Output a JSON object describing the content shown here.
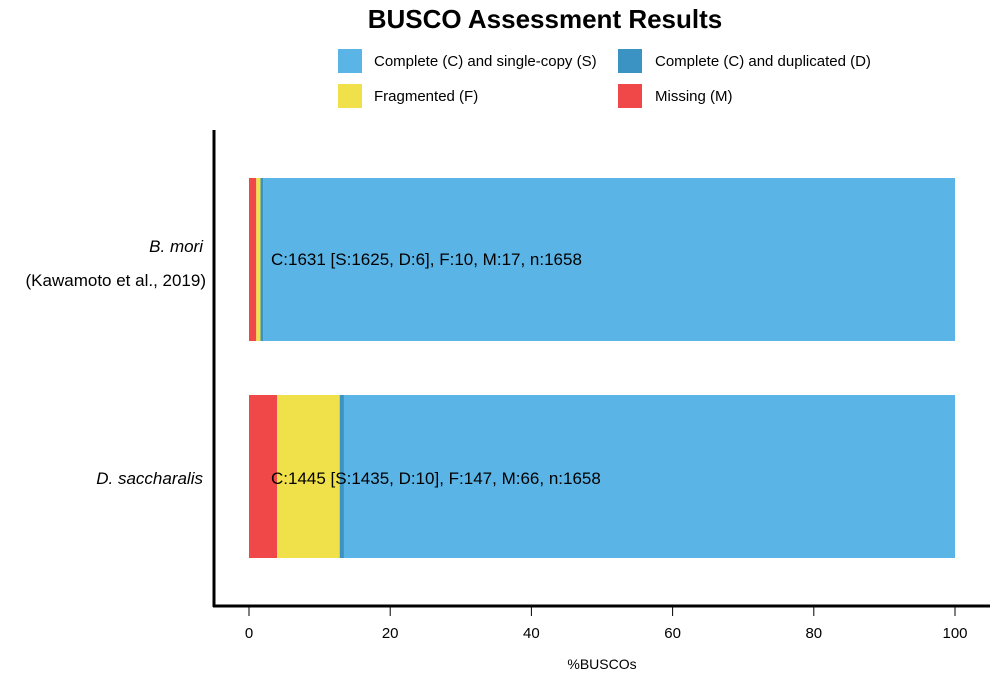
{
  "chart_data": {
    "type": "bar",
    "orientation": "horizontal",
    "stacked": true,
    "title": "BUSCO Assessment Results",
    "xlabel": "%BUSCOs",
    "ylabel": "",
    "xlim": [
      0,
      100
    ],
    "xticks": [
      0,
      20,
      40,
      60,
      80,
      100
    ],
    "grid": false,
    "legend_position": "top",
    "legend": [
      {
        "key": "S",
        "label": "Complete (C) and single-copy (S)",
        "color": "#5AB4E5"
      },
      {
        "key": "D",
        "label": "Complete (C) and duplicated (D)",
        "color": "#3A93C3"
      },
      {
        "key": "F",
        "label": "Fragmented (F)",
        "color": "#F0E14A"
      },
      {
        "key": "M",
        "label": "Missing (M)",
        "color": "#F04848"
      }
    ],
    "categories": [
      {
        "name": "B. mori",
        "citation": "(Kawamoto et al., 2019)",
        "label": "C:1631 [S:1625, D:6], F:10, M:17, n:1658"
      },
      {
        "name": "D. saccharalis",
        "citation": "",
        "label": "C:1445 [S:1435, D:10], F:147, M:66, n:1658"
      }
    ],
    "series": [
      {
        "key": "M",
        "name": "Missing (M)",
        "values": [
          1.03,
          3.98
        ]
      },
      {
        "key": "F",
        "name": "Fragmented (F)",
        "values": [
          0.6,
          8.87
        ]
      },
      {
        "key": "D",
        "name": "Complete (C) and duplicated (D)",
        "values": [
          0.36,
          0.6
        ]
      },
      {
        "key": "S",
        "name": "Complete (C) and single-copy (S)",
        "values": [
          98.01,
          86.55
        ]
      }
    ]
  }
}
